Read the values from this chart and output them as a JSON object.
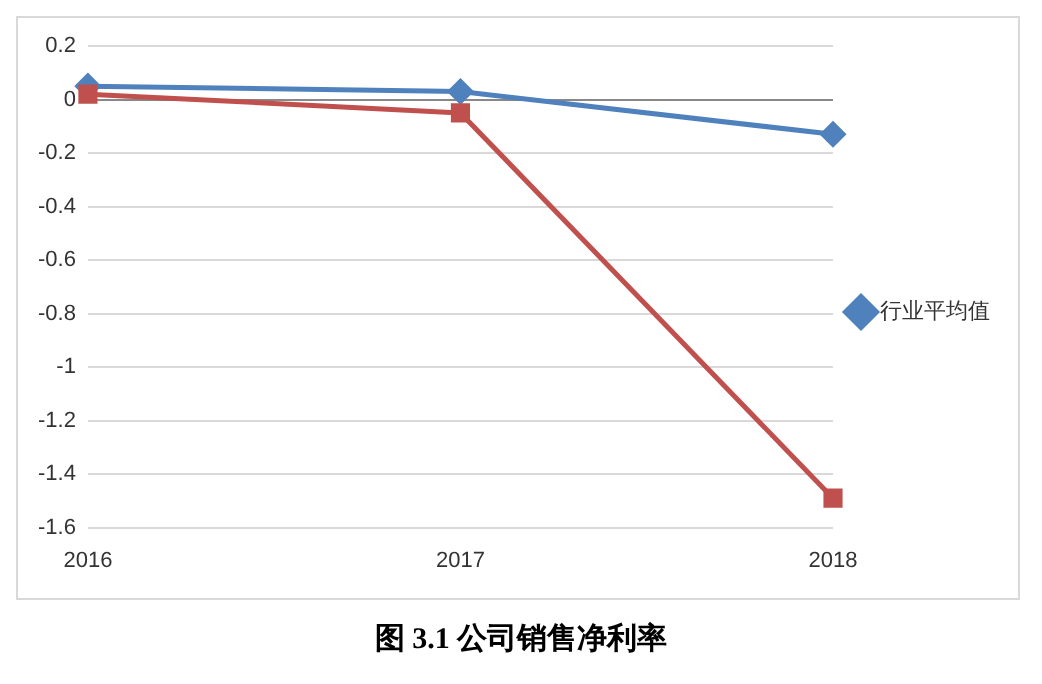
{
  "chart_data": {
    "type": "line",
    "title": "图 3.1 公司销售净利率",
    "categories": [
      "2016",
      "2017",
      "2018"
    ],
    "series": [
      {
        "color": "#c0504d",
        "marker": "square",
        "values": [
          0.02,
          -0.05,
          -1.49
        ]
      },
      {
        "name": "行业平均值",
        "color": "#4f81bd",
        "marker": "diamond",
        "values": [
          0.05,
          0.03,
          -0.13
        ]
      }
    ],
    "ylim": [
      -1.6,
      0.2
    ],
    "yticks": [
      -1.6,
      -1.4,
      -1.2,
      -1,
      -0.8,
      -0.6,
      -0.4,
      -0.2,
      0,
      0.2
    ],
    "grid": "y",
    "legend": "right"
  }
}
